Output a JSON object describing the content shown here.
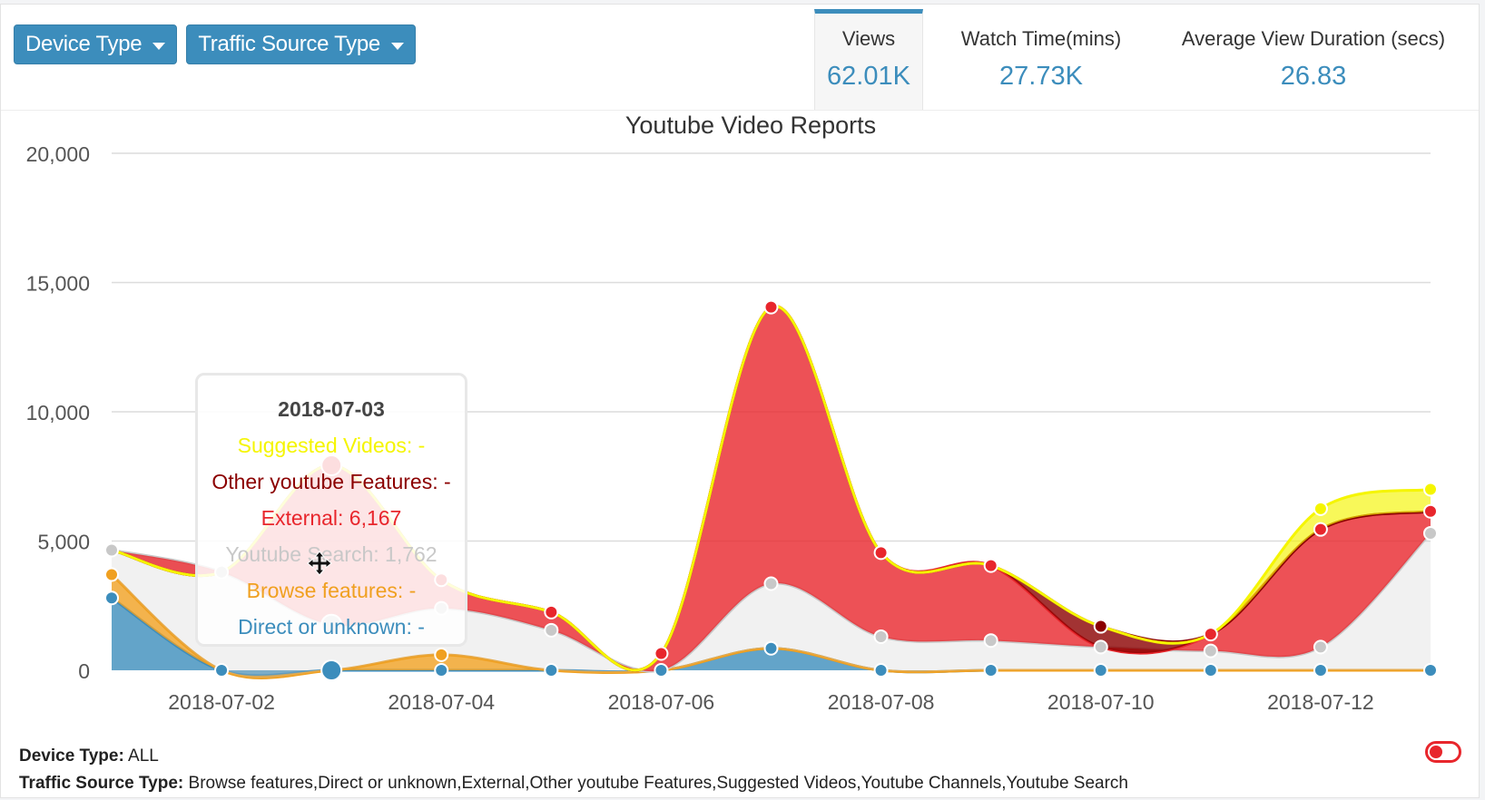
{
  "filters": {
    "device_type_label": "Device Type",
    "traffic_source_label": "Traffic Source Type"
  },
  "stats": [
    {
      "label": "Views",
      "value": "62.01K",
      "active": true
    },
    {
      "label": "Watch Time(mins)",
      "value": "27.73K",
      "active": false
    },
    {
      "label": "Average View Duration (secs)",
      "value": "26.83",
      "active": false
    }
  ],
  "tooltip": {
    "date": "2018-07-03",
    "lines": [
      {
        "text": "Suggested Videos: -",
        "color": "#f5f500"
      },
      {
        "text": "Other youtube Features: -",
        "color": "#8b0000"
      },
      {
        "text": "External: 6,167",
        "color": "#e8262c"
      },
      {
        "text": "Youtube Search: 1,762",
        "color": "#c8c8c8"
      },
      {
        "text": "Browse features: -",
        "color": "#f0a020"
      },
      {
        "text": "Direct or unknown: -",
        "color": "#3c8dbc"
      }
    ]
  },
  "footer": {
    "device_label": "Device Type:",
    "device_value": "ALL",
    "traffic_label": "Traffic Source Type:",
    "traffic_value": "Browse features,Direct or unknown,External,Other youtube Features,Suggested Videos,Youtube Channels,Youtube Search"
  },
  "chart_data": {
    "type": "area",
    "title": "Youtube Video Reports",
    "ylim": [
      0,
      20000
    ],
    "yticks": [
      0,
      5000,
      10000,
      15000,
      20000
    ],
    "ytick_labels": [
      "0",
      "5,000",
      "10,000",
      "15,000",
      "20,000"
    ],
    "x": [
      "2018-07-01",
      "2018-07-02",
      "2018-07-03",
      "2018-07-04",
      "2018-07-05",
      "2018-07-06",
      "2018-07-07",
      "2018-07-08",
      "2018-07-09",
      "2018-07-10",
      "2018-07-11",
      "2018-07-12",
      "2018-07-13"
    ],
    "xtick_labels": [
      "2018-07-02",
      "2018-07-04",
      "2018-07-06",
      "2018-07-08",
      "2018-07-10",
      "2018-07-12"
    ],
    "hover_index": 2,
    "grid": true,
    "series": [
      {
        "name": "Direct or unknown",
        "color": "#3c8dbc",
        "values": [
          2800,
          0,
          0,
          0,
          0,
          0,
          850,
          0,
          0,
          0,
          0,
          0,
          0
        ]
      },
      {
        "name": "Browse features",
        "color": "#f0a020",
        "values": [
          900,
          0,
          0,
          600,
          0,
          0,
          0,
          0,
          0,
          0,
          0,
          0,
          0
        ]
      },
      {
        "name": "Youtube Search",
        "color": "#c8c8c8",
        "values": [
          950,
          3800,
          1762,
          1800,
          1550,
          0,
          2500,
          1300,
          1150,
          900,
          750,
          900,
          5300
        ]
      },
      {
        "name": "External",
        "color": "#e8262c",
        "values": [
          0,
          0,
          6167,
          1100,
          700,
          650,
          10700,
          3250,
          2900,
          0,
          650,
          4550,
          850
        ]
      },
      {
        "name": "Other youtube Features",
        "color": "#8b0000",
        "values": [
          0,
          0,
          0,
          0,
          0,
          0,
          0,
          0,
          0,
          800,
          0,
          0,
          0
        ]
      },
      {
        "name": "Suggested Videos",
        "color": "#f5f500",
        "values": [
          0,
          0,
          0,
          0,
          0,
          0,
          0,
          0,
          0,
          0,
          0,
          800,
          850
        ]
      }
    ]
  }
}
